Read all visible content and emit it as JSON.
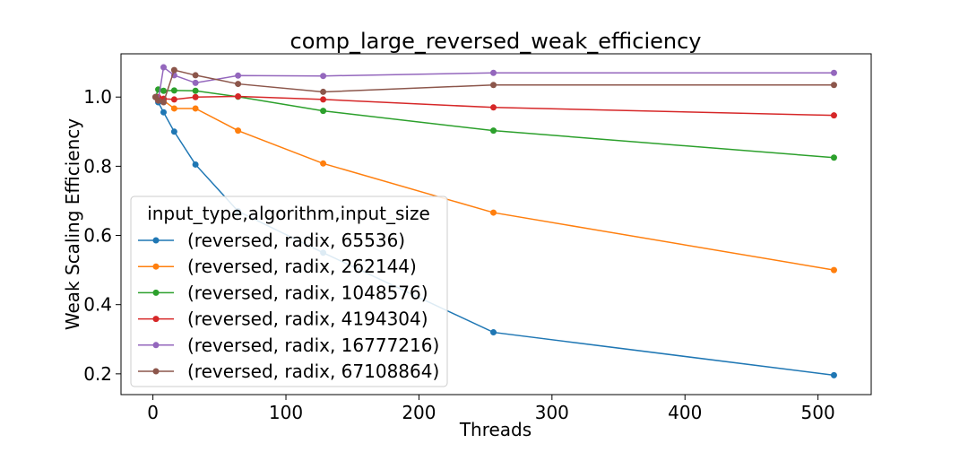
{
  "chart_data": {
    "type": "line",
    "title": "comp_large_reversed_weak_efficiency",
    "xlabel": "Threads",
    "ylabel": "Weak Scaling Efficiency",
    "xlim": [
      -24,
      540
    ],
    "ylim": [
      0.14,
      1.125
    ],
    "xticks": [
      0,
      100,
      200,
      300,
      400,
      500
    ],
    "xtick_labels": [
      "0",
      "100",
      "200",
      "300",
      "400",
      "500"
    ],
    "yticks": [
      0.2,
      0.4,
      0.6,
      0.8,
      1.0
    ],
    "ytick_labels": [
      "0.2",
      "0.4",
      "0.6",
      "0.8",
      "1.0"
    ],
    "grid": false,
    "legend_placement": "lower-left",
    "legend_title": "input_type,algorithm,input_size",
    "x": [
      2,
      4,
      8,
      16,
      32,
      64,
      128,
      256,
      512
    ],
    "series": [
      {
        "name": "(reversed, radix, 65536)",
        "color": "#1f77b4",
        "values": [
          1.0,
          0.985,
          0.956,
          0.9,
          0.805,
          0.67,
          0.55,
          0.32,
          0.196
        ]
      },
      {
        "name": "(reversed, radix, 262144)",
        "color": "#ff7f0e",
        "values": [
          1.0,
          0.99,
          0.99,
          0.967,
          0.967,
          0.903,
          0.808,
          0.666,
          0.5
        ]
      },
      {
        "name": "(reversed, radix, 1048576)",
        "color": "#2ca02c",
        "values": [
          1.0,
          1.022,
          1.018,
          1.019,
          1.018,
          1.001,
          0.96,
          0.903,
          0.825
        ]
      },
      {
        "name": "(reversed, radix, 4194304)",
        "color": "#d62728",
        "values": [
          1.0,
          1.0,
          0.995,
          0.993,
          1.0,
          1.002,
          0.993,
          0.97,
          0.947
        ]
      },
      {
        "name": "(reversed, radix, 16777216)",
        "color": "#9467bd",
        "values": [
          1.0,
          0.99,
          1.086,
          1.063,
          1.041,
          1.062,
          1.061,
          1.07,
          1.07
        ]
      },
      {
        "name": "(reversed, radix, 67108864)",
        "color": "#8c564b",
        "values": [
          1.0,
          0.99,
          0.985,
          1.078,
          1.063,
          1.038,
          1.015,
          1.035,
          1.035
        ]
      }
    ]
  }
}
